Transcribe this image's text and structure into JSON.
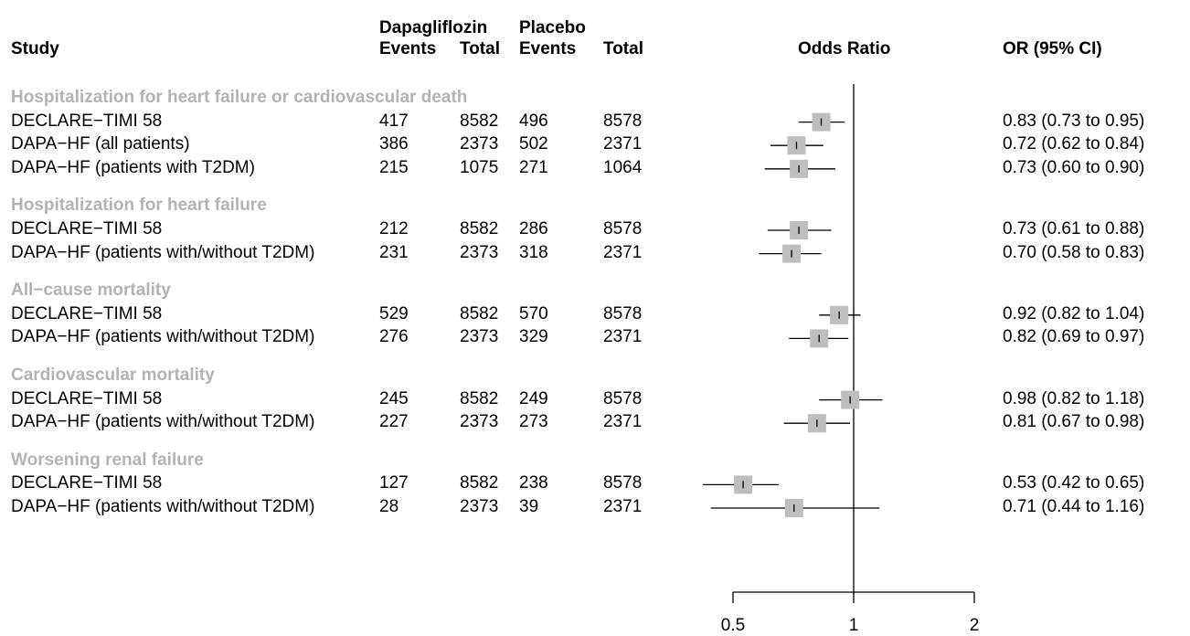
{
  "headers": {
    "study": "Study",
    "dapa": "Dapagliflozin",
    "placebo": "Placebo",
    "events1": "Events",
    "total1": "Total",
    "events2": "Events",
    "total2": "Total",
    "or_col": "Odds Ratio",
    "ci_col": "OR (95% CI)"
  },
  "chart_data": {
    "type": "forest",
    "xscale": "log",
    "xlim": [
      0.4,
      2
    ],
    "xticks": [
      "0.5",
      "1",
      "2"
    ],
    "reference_line": 1,
    "groups": [
      {
        "title": "Hospitalization for heart failure or cardiovascular death",
        "rows": [
          {
            "study": "DECLARE−TIMI 58",
            "dapa_events": "417",
            "dapa_total": "8582",
            "pla_events": "496",
            "pla_total": "8578",
            "or": 0.83,
            "lo": 0.73,
            "hi": 0.95,
            "label": "0.83 (0.73 to 0.95)"
          },
          {
            "study": "DAPA−HF (all patients)",
            "dapa_events": "386",
            "dapa_total": "2373",
            "pla_events": "502",
            "pla_total": "2371",
            "or": 0.72,
            "lo": 0.62,
            "hi": 0.84,
            "label": "0.72 (0.62 to 0.84)"
          },
          {
            "study": "DAPA−HF (patients with T2DM)",
            "dapa_events": "215",
            "dapa_total": "1075",
            "pla_events": "271",
            "pla_total": "1064",
            "or": 0.73,
            "lo": 0.6,
            "hi": 0.9,
            "label": "0.73 (0.60 to 0.90)"
          }
        ]
      },
      {
        "title": "Hospitalization for heart failure",
        "rows": [
          {
            "study": "DECLARE−TIMI 58",
            "dapa_events": "212",
            "dapa_total": "8582",
            "pla_events": "286",
            "pla_total": "8578",
            "or": 0.73,
            "lo": 0.61,
            "hi": 0.88,
            "label": "0.73 (0.61 to 0.88)"
          },
          {
            "study": "DAPA−HF (patients with/without T2DM)",
            "dapa_events": "231",
            "dapa_total": "2373",
            "pla_events": "318",
            "pla_total": "2371",
            "or": 0.7,
            "lo": 0.58,
            "hi": 0.83,
            "label": "0.70 (0.58 to 0.83)"
          }
        ]
      },
      {
        "title": "All−cause mortality",
        "rows": [
          {
            "study": "DECLARE−TIMI 58",
            "dapa_events": "529",
            "dapa_total": "8582",
            "pla_events": "570",
            "pla_total": "8578",
            "or": 0.92,
            "lo": 0.82,
            "hi": 1.04,
            "label": "0.92 (0.82 to 1.04)"
          },
          {
            "study": "DAPA−HF (patients with/without T2DM)",
            "dapa_events": "276",
            "dapa_total": "2373",
            "pla_events": "329",
            "pla_total": "2371",
            "or": 0.82,
            "lo": 0.69,
            "hi": 0.97,
            "label": "0.82 (0.69 to 0.97)"
          }
        ]
      },
      {
        "title": "Cardiovascular mortality",
        "rows": [
          {
            "study": "DECLARE−TIMI 58",
            "dapa_events": "245",
            "dapa_total": "8582",
            "pla_events": "249",
            "pla_total": "8578",
            "or": 0.98,
            "lo": 0.82,
            "hi": 1.18,
            "label": "0.98 (0.82 to 1.18)"
          },
          {
            "study": "DAPA−HF (patients with/without T2DM)",
            "dapa_events": "227",
            "dapa_total": "2373",
            "pla_events": "273",
            "pla_total": "2371",
            "or": 0.81,
            "lo": 0.67,
            "hi": 0.98,
            "label": "0.81 (0.67 to 0.98)"
          }
        ]
      },
      {
        "title": "Worsening renal failure",
        "rows": [
          {
            "study": "DECLARE−TIMI 58",
            "dapa_events": "127",
            "dapa_total": "8582",
            "pla_events": "238",
            "pla_total": "8578",
            "or": 0.53,
            "lo": 0.42,
            "hi": 0.65,
            "label": "0.53 (0.42 to 0.65)"
          },
          {
            "study": "DAPA−HF (patients with/without T2DM)",
            "dapa_events": "28",
            "dapa_total": "2373",
            "pla_events": "39",
            "pla_total": "2371",
            "or": 0.71,
            "lo": 0.44,
            "hi": 1.16,
            "label": "0.71 (0.44 to 1.16)"
          }
        ]
      }
    ],
    "colors": {
      "group_title": "#b3b3b3",
      "box": "#bebebe",
      "line": "#000000"
    }
  }
}
